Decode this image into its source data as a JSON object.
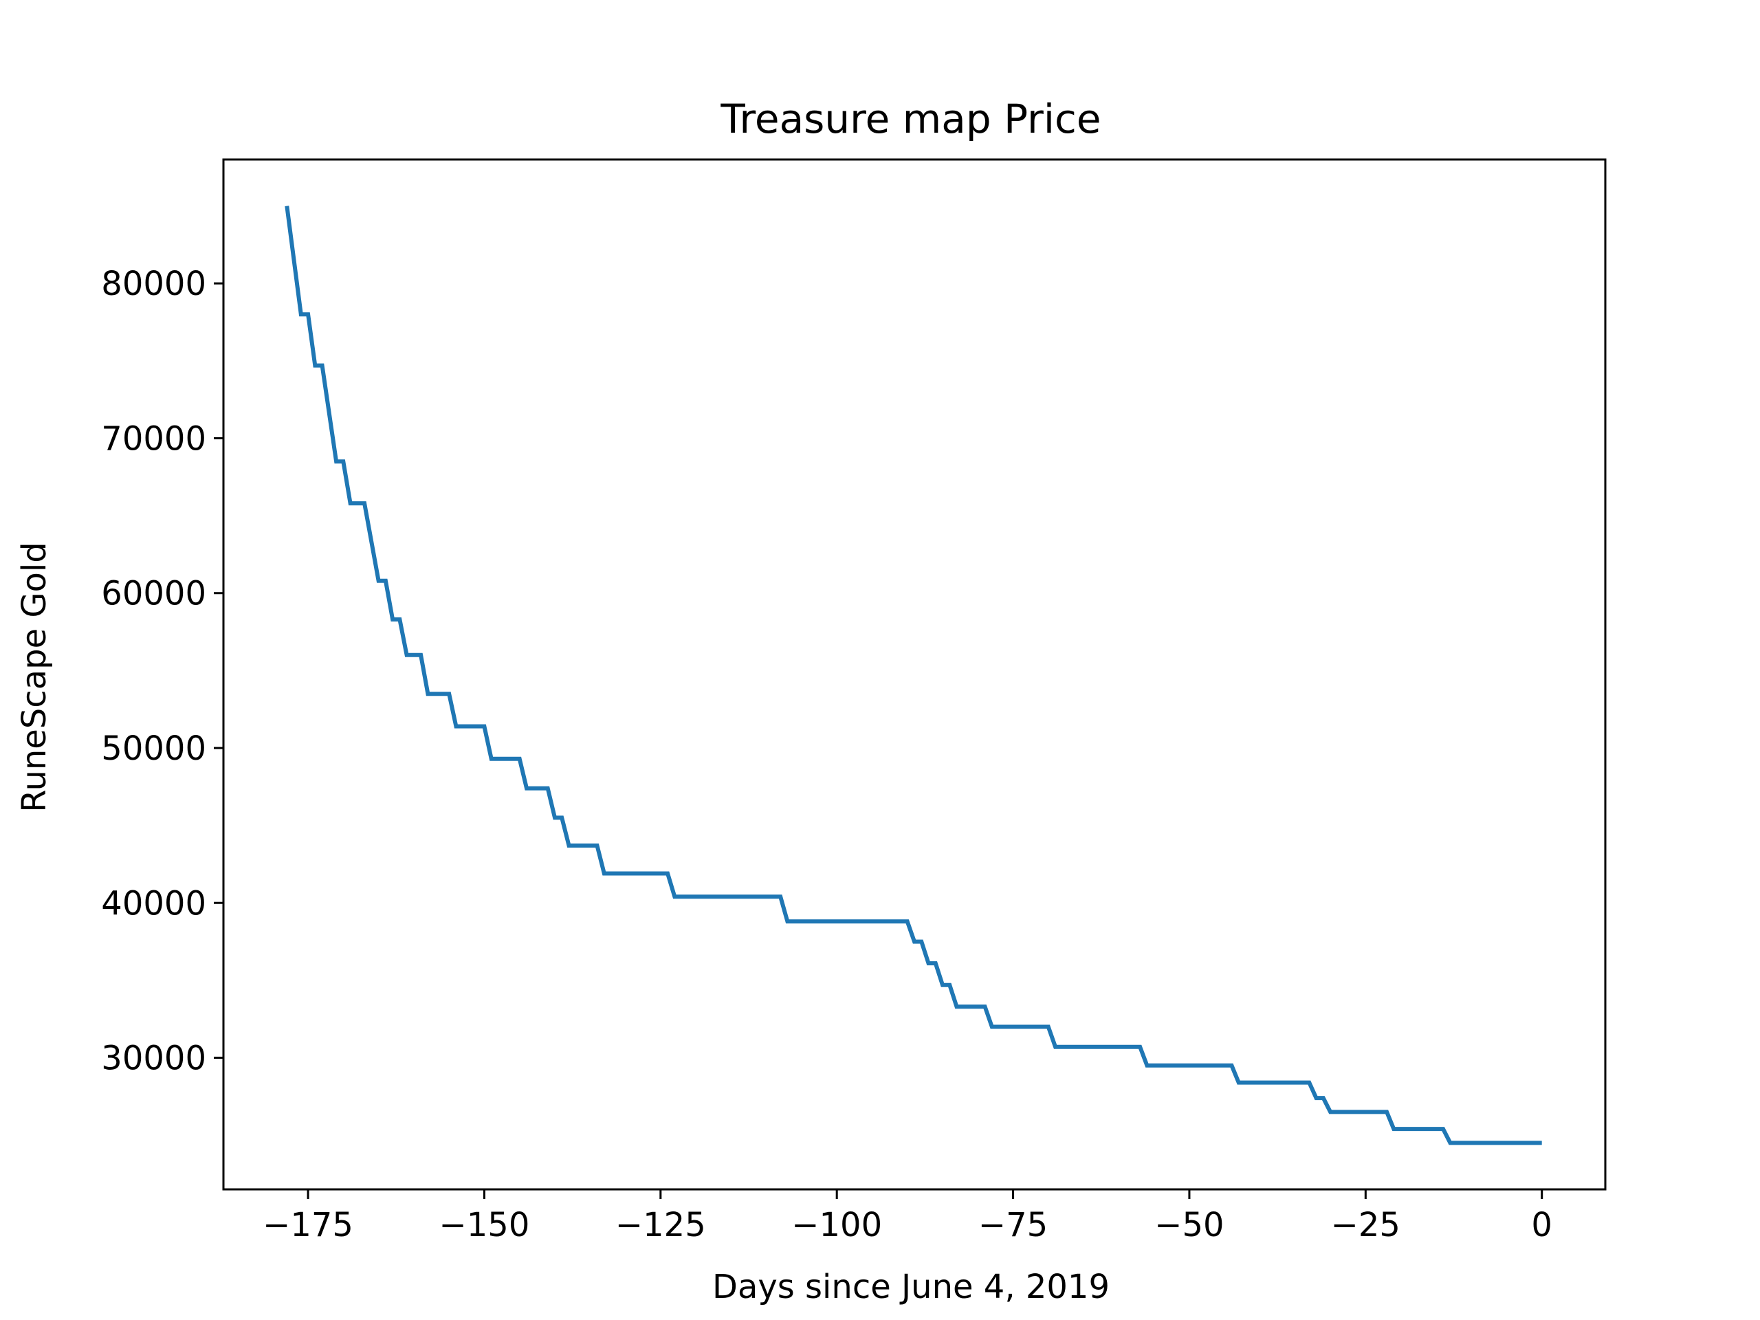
{
  "chart_data": {
    "type": "line",
    "title": "Treasure map Price",
    "xlabel": "Days since June 4, 2019",
    "ylabel": "RuneScape Gold",
    "xlim": [
      -187,
      9
    ],
    "ylim": [
      21500,
      88000
    ],
    "x_ticks": [
      -175,
      -150,
      -125,
      -100,
      -75,
      -50,
      -25,
      0
    ],
    "x_tick_labels": [
      "−175",
      "−150",
      "−125",
      "−100",
      "−75",
      "−50",
      "−25",
      "0"
    ],
    "y_ticks": [
      30000,
      40000,
      50000,
      60000,
      70000,
      80000
    ],
    "y_tick_labels": [
      "30000",
      "40000",
      "50000",
      "60000",
      "70000",
      "80000"
    ],
    "grid": false,
    "legend": "none",
    "series": [
      {
        "color": "#1f77b4",
        "points": [
          [
            -178,
            85000
          ],
          [
            -176,
            78000
          ],
          [
            -175,
            78000
          ],
          [
            -174,
            74700
          ],
          [
            -173,
            74700
          ],
          [
            -171,
            68500
          ],
          [
            -170,
            68500
          ],
          [
            -169,
            65800
          ],
          [
            -167,
            65800
          ],
          [
            -165,
            60800
          ],
          [
            -164,
            60800
          ],
          [
            -163,
            58300
          ],
          [
            -162,
            58300
          ],
          [
            -161,
            56000
          ],
          [
            -159,
            56000
          ],
          [
            -158,
            53500
          ],
          [
            -155,
            53500
          ],
          [
            -154,
            51400
          ],
          [
            -150,
            51400
          ],
          [
            -149,
            49300
          ],
          [
            -145,
            49300
          ],
          [
            -144,
            47400
          ],
          [
            -141,
            47400
          ],
          [
            -140,
            45500
          ],
          [
            -139,
            45500
          ],
          [
            -138,
            43700
          ],
          [
            -134,
            43700
          ],
          [
            -133,
            41900
          ],
          [
            -124,
            41900
          ],
          [
            -123,
            40400
          ],
          [
            -108,
            40400
          ],
          [
            -107,
            38800
          ],
          [
            -90,
            38800
          ],
          [
            -89,
            37500
          ],
          [
            -88,
            37500
          ],
          [
            -87,
            36100
          ],
          [
            -86,
            36100
          ],
          [
            -85,
            34700
          ],
          [
            -84,
            34700
          ],
          [
            -83,
            33300
          ],
          [
            -79,
            33300
          ],
          [
            -78,
            32000
          ],
          [
            -70,
            32000
          ],
          [
            -69,
            30700
          ],
          [
            -57,
            30700
          ],
          [
            -56,
            29500
          ],
          [
            -44,
            29500
          ],
          [
            -43,
            28400
          ],
          [
            -33,
            28400
          ],
          [
            -32,
            27400
          ],
          [
            -31,
            27400
          ],
          [
            -30,
            26500
          ],
          [
            -22,
            26500
          ],
          [
            -21,
            25400
          ],
          [
            -14,
            25400
          ],
          [
            -13,
            24500
          ],
          [
            0,
            24500
          ]
        ]
      }
    ]
  }
}
